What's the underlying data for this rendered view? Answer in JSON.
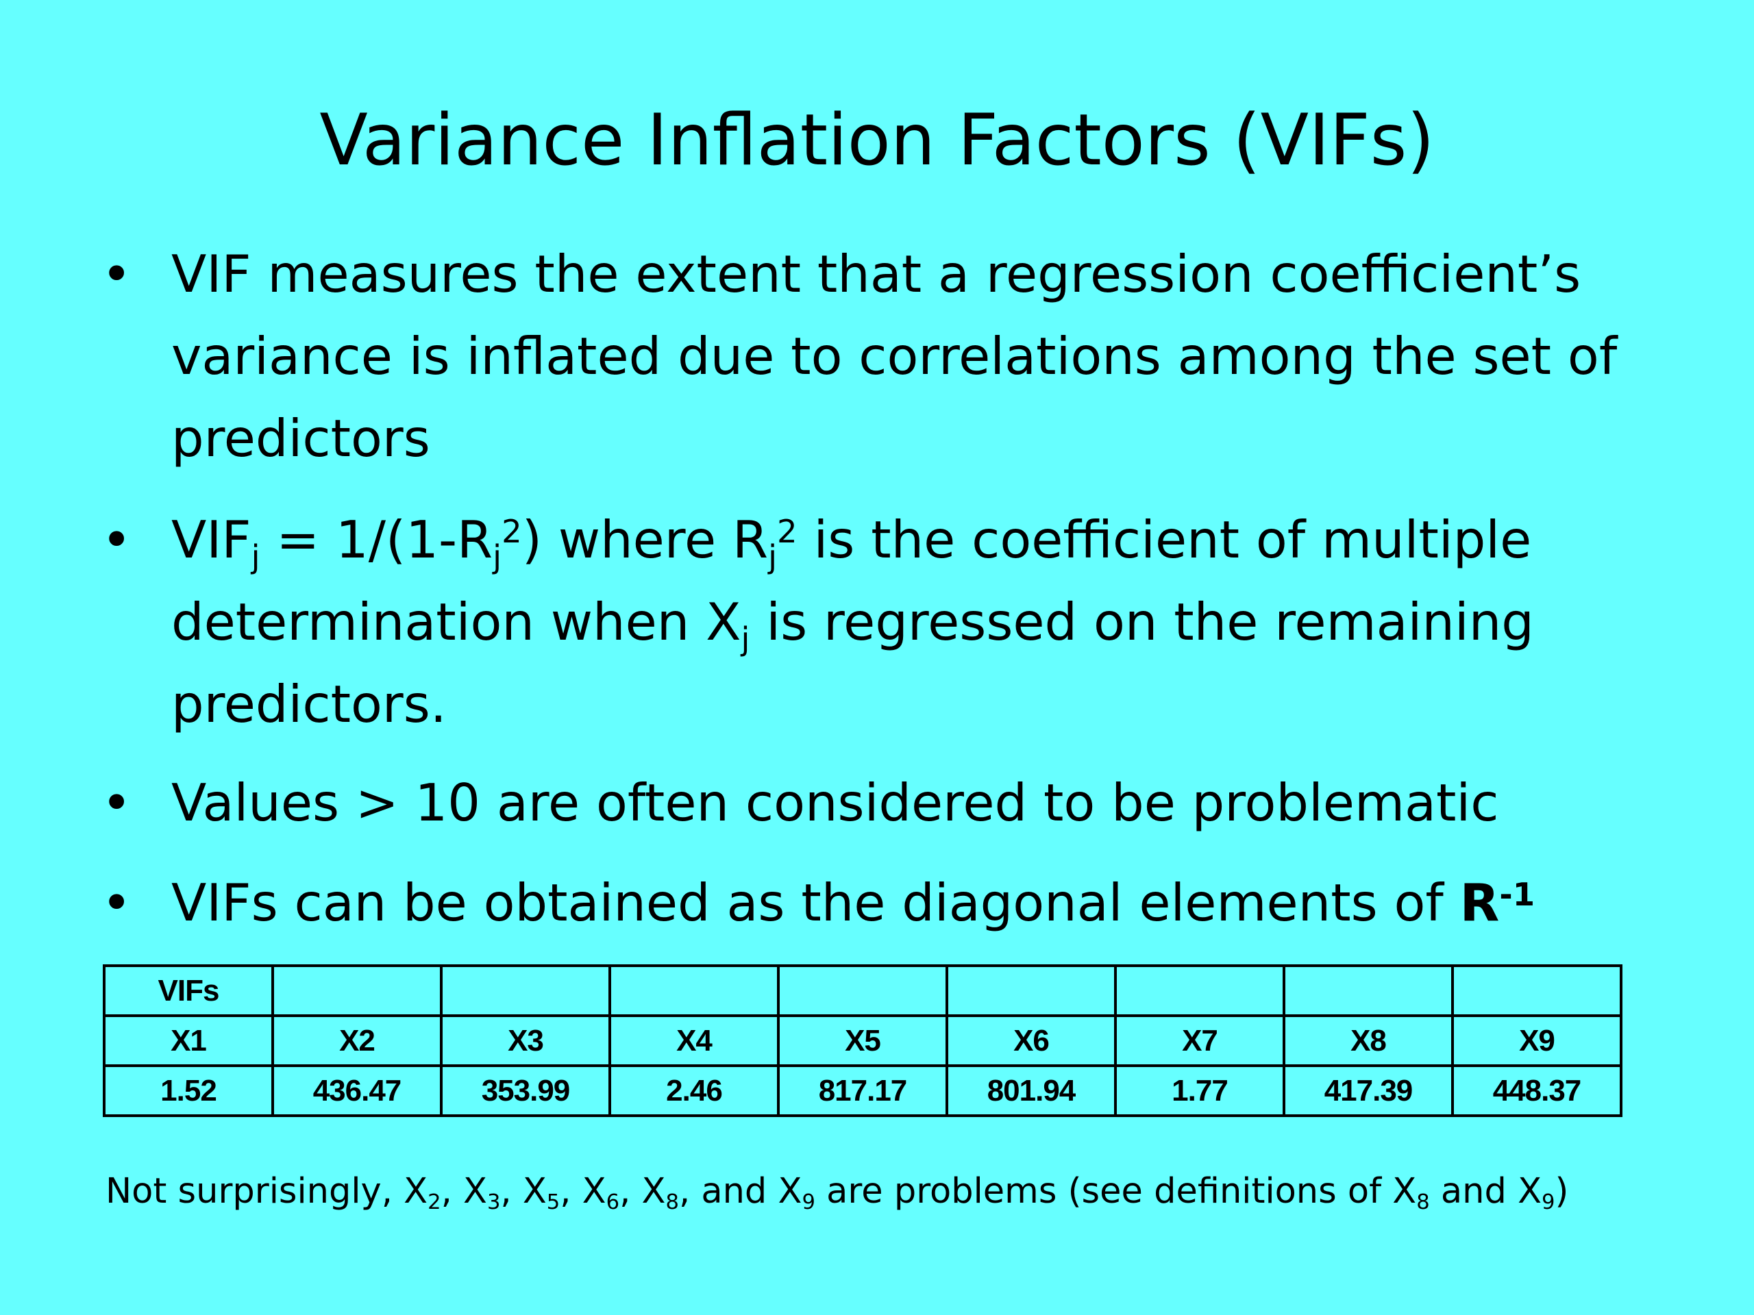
{
  "title": "Variance Inflation Factors (VIFs)",
  "bullet_symbol": "•",
  "bullets": {
    "b1": "VIF measures the extent that a regression coefficient’s variance is inflated due to correlations among the set of predictors",
    "b2": {
      "p1": "VIF",
      "s1": "j",
      "p2": " = 1/(1-R",
      "s2": "j",
      "sup2": "2",
      "p3": ") where R",
      "s3": "j",
      "sup3": "2",
      "p4": " is the coefficient of multiple determination when X",
      "s4": "j",
      "p5": " is regressed on the remaining predictors."
    },
    "b3": "Values > 10 are often considered to be problematic",
    "b4": {
      "p1": "VIFs can be obtained as the diagonal elements of ",
      "matrix": "R",
      "exp": "-1"
    }
  },
  "table": {
    "header": "VIFs",
    "columns": [
      "X1",
      "X2",
      "X3",
      "X4",
      "X5",
      "X6",
      "X7",
      "X8",
      "X9"
    ],
    "values": [
      "1.52",
      "436.47",
      "353.99",
      "2.46",
      "817.17",
      "801.94",
      "1.77",
      "417.39",
      "448.37"
    ]
  },
  "footnote": {
    "p1": "Not surprisingly, X",
    "s1": "2",
    "p2": ", X",
    "s2": "3",
    "p3": ", X",
    "s3": "5",
    "p4": ", X",
    "s4": "6",
    "p5": ", X",
    "s5": "8",
    "p6": ", and X",
    "s6": "9",
    "p7": " are problems (see definitions of X",
    "s7": "8",
    "p8": " and X",
    "s8": "9",
    "p9": ")"
  },
  "colors": {
    "background": "#66ffff",
    "text": "#000000"
  }
}
